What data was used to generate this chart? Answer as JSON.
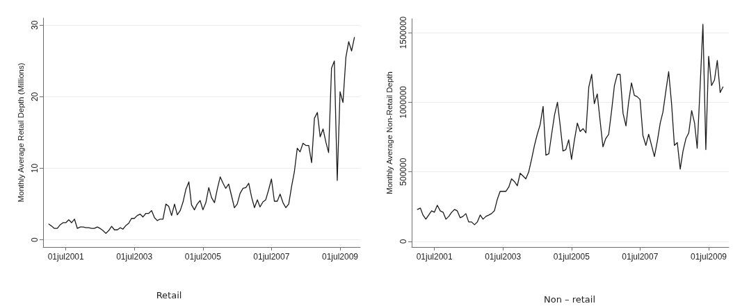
{
  "chart_data": [
    {
      "type": "line",
      "ylabel": "Monthly Average Retail Depth (Millions)",
      "annotations": [
        "Retail"
      ],
      "x": [
        "2001-01",
        "2001-02",
        "2001-03",
        "2001-04",
        "2001-05",
        "2001-06",
        "2001-07",
        "2001-08",
        "2001-09",
        "2001-10",
        "2001-11",
        "2001-12",
        "2002-01",
        "2002-02",
        "2002-03",
        "2002-04",
        "2002-05",
        "2002-06",
        "2002-07",
        "2002-08",
        "2002-09",
        "2002-10",
        "2002-11",
        "2002-12",
        "2003-01",
        "2003-02",
        "2003-03",
        "2003-04",
        "2003-05",
        "2003-06",
        "2003-07",
        "2003-08",
        "2003-09",
        "2003-10",
        "2003-11",
        "2003-12",
        "2004-01",
        "2004-02",
        "2004-03",
        "2004-04",
        "2004-05",
        "2004-06",
        "2004-07",
        "2004-08",
        "2004-09",
        "2004-10",
        "2004-11",
        "2004-12",
        "2005-01",
        "2005-02",
        "2005-03",
        "2005-04",
        "2005-05",
        "2005-06",
        "2005-07",
        "2005-08",
        "2005-09",
        "2005-10",
        "2005-11",
        "2005-12",
        "2006-01",
        "2006-02",
        "2006-03",
        "2006-04",
        "2006-05",
        "2006-06",
        "2006-07",
        "2006-08",
        "2006-09",
        "2006-10",
        "2006-11",
        "2006-12",
        "2007-01",
        "2007-02",
        "2007-03",
        "2007-04",
        "2007-05",
        "2007-06",
        "2007-07",
        "2007-08",
        "2007-09",
        "2007-10",
        "2007-11",
        "2007-12",
        "2008-01",
        "2008-02",
        "2008-03",
        "2008-04",
        "2008-05",
        "2008-06",
        "2008-07",
        "2008-08",
        "2008-09",
        "2008-10",
        "2008-11",
        "2008-12",
        "2009-01",
        "2009-02",
        "2009-03",
        "2009-04",
        "2009-05",
        "2009-06",
        "2009-07",
        "2009-08",
        "2009-09",
        "2009-10",
        "2009-11",
        "2009-12"
      ],
      "series": [
        {
          "color": "#1a1a1a",
          "values": [
            2.2,
            1.9,
            1.6,
            1.6,
            2.1,
            2.4,
            2.4,
            2.8,
            2.4,
            2.9,
            1.6,
            1.8,
            1.8,
            1.7,
            1.7,
            1.6,
            1.6,
            1.8,
            1.6,
            1.3,
            0.9,
            1.3,
            1.9,
            1.4,
            1.4,
            1.7,
            1.5,
            2.0,
            2.3,
            3.0,
            3.0,
            3.4,
            3.6,
            3.2,
            3.7,
            3.7,
            4.1,
            3.1,
            2.7,
            2.9,
            2.9,
            5.0,
            4.7,
            3.4,
            5.0,
            3.5,
            4.1,
            5.3,
            7.1,
            8.1,
            4.9,
            4.2,
            5.0,
            5.5,
            4.2,
            5.2,
            7.3,
            5.9,
            5.2,
            7.1,
            8.8,
            7.9,
            7.2,
            7.8,
            6.2,
            4.5,
            5.0,
            6.5,
            7.2,
            7.3,
            7.9,
            6.0,
            4.5,
            5.6,
            4.6,
            5.3,
            5.6,
            7.0,
            8.5,
            5.4,
            5.4,
            6.4,
            5.2,
            4.5,
            5.0,
            7.5,
            9.5,
            12.8,
            12.3,
            13.5,
            13.2,
            13.2,
            10.8,
            17.0,
            17.8,
            14.4,
            15.5,
            13.6,
            12.2,
            24.0,
            25.0,
            8.3,
            20.7,
            19.2,
            25.5,
            27.7,
            26.4,
            28.3
          ]
        }
      ],
      "xlim": [
        "2000-11",
        "2010-02"
      ],
      "xticks": [
        {
          "value": "2001-07-01",
          "label": "01jul2001"
        },
        {
          "value": "2003-07-01",
          "label": "01jul2003"
        },
        {
          "value": "2005-07-01",
          "label": "01jul2005"
        },
        {
          "value": "2007-07-01",
          "label": "01jul2007"
        },
        {
          "value": "2009-07-01",
          "label": "01jul2009"
        }
      ],
      "ylim": [
        -1,
        31
      ],
      "yticks": [
        0,
        10,
        20,
        30
      ],
      "grid": "y"
    },
    {
      "type": "line",
      "ylabel": "Monthly Average Non-Retail Depth",
      "annotations": [
        "Non – retail"
      ],
      "x": [
        "2001-01",
        "2001-02",
        "2001-03",
        "2001-04",
        "2001-05",
        "2001-06",
        "2001-07",
        "2001-08",
        "2001-09",
        "2001-10",
        "2001-11",
        "2001-12",
        "2002-01",
        "2002-02",
        "2002-03",
        "2002-04",
        "2002-05",
        "2002-06",
        "2002-07",
        "2002-08",
        "2002-09",
        "2002-10",
        "2002-11",
        "2002-12",
        "2003-01",
        "2003-02",
        "2003-03",
        "2003-04",
        "2003-05",
        "2003-06",
        "2003-07",
        "2003-08",
        "2003-09",
        "2003-10",
        "2003-11",
        "2003-12",
        "2004-01",
        "2004-02",
        "2004-03",
        "2004-04",
        "2004-05",
        "2004-06",
        "2004-07",
        "2004-08",
        "2004-09",
        "2004-10",
        "2004-11",
        "2004-12",
        "2005-01",
        "2005-02",
        "2005-03",
        "2005-04",
        "2005-05",
        "2005-06",
        "2005-07",
        "2005-08",
        "2005-09",
        "2005-10",
        "2005-11",
        "2005-12",
        "2006-01",
        "2006-02",
        "2006-03",
        "2006-04",
        "2006-05",
        "2006-06",
        "2006-07",
        "2006-08",
        "2006-09",
        "2006-10",
        "2006-11",
        "2006-12",
        "2007-01",
        "2007-02",
        "2007-03",
        "2007-04",
        "2007-05",
        "2007-06",
        "2007-07",
        "2007-08",
        "2007-09",
        "2007-10",
        "2007-11",
        "2007-12",
        "2008-01",
        "2008-02",
        "2008-03",
        "2008-04",
        "2008-05",
        "2008-06",
        "2008-07",
        "2008-08",
        "2008-09",
        "2008-10",
        "2008-11",
        "2008-12",
        "2009-01",
        "2009-02",
        "2009-03",
        "2009-04",
        "2009-05",
        "2009-06",
        "2009-07",
        "2009-08",
        "2009-09",
        "2009-10",
        "2009-11",
        "2009-12"
      ],
      "series": [
        {
          "color": "#1a1a1a",
          "values": [
            230000,
            240000,
            190000,
            160000,
            190000,
            220000,
            210000,
            260000,
            220000,
            210000,
            160000,
            180000,
            210000,
            230000,
            220000,
            170000,
            180000,
            200000,
            140000,
            140000,
            120000,
            140000,
            190000,
            160000,
            180000,
            190000,
            200000,
            220000,
            300000,
            360000,
            360000,
            360000,
            390000,
            450000,
            430000,
            400000,
            490000,
            470000,
            450000,
            500000,
            590000,
            690000,
            770000,
            840000,
            970000,
            620000,
            630000,
            770000,
            910000,
            1000000,
            840000,
            650000,
            660000,
            730000,
            590000,
            730000,
            850000,
            790000,
            810000,
            780000,
            1110000,
            1200000,
            990000,
            1060000,
            870000,
            680000,
            740000,
            770000,
            940000,
            1120000,
            1200000,
            1200000,
            920000,
            830000,
            1000000,
            1140000,
            1050000,
            1040000,
            1020000,
            760000,
            690000,
            770000,
            690000,
            610000,
            720000,
            850000,
            930000,
            1080000,
            1220000,
            990000,
            690000,
            710000,
            520000,
            650000,
            740000,
            780000,
            940000,
            850000,
            670000,
            1110000,
            1560000,
            660000,
            1330000,
            1120000,
            1160000,
            1300000,
            1070000,
            1110000
          ]
        }
      ],
      "xlim": [
        "2000-11",
        "2010-02"
      ],
      "xticks": [
        {
          "value": "2001-07-01",
          "label": "01jul2001"
        },
        {
          "value": "2003-07-01",
          "label": "01jul2003"
        },
        {
          "value": "2005-07-01",
          "label": "01jul2005"
        },
        {
          "value": "2007-07-01",
          "label": "01jul2007"
        },
        {
          "value": "2009-07-01",
          "label": "01jul2009"
        }
      ],
      "ylim": [
        -40000,
        1600000
      ],
      "yticks": [
        0,
        500000,
        1000000,
        1500000
      ],
      "grid": "y"
    }
  ]
}
